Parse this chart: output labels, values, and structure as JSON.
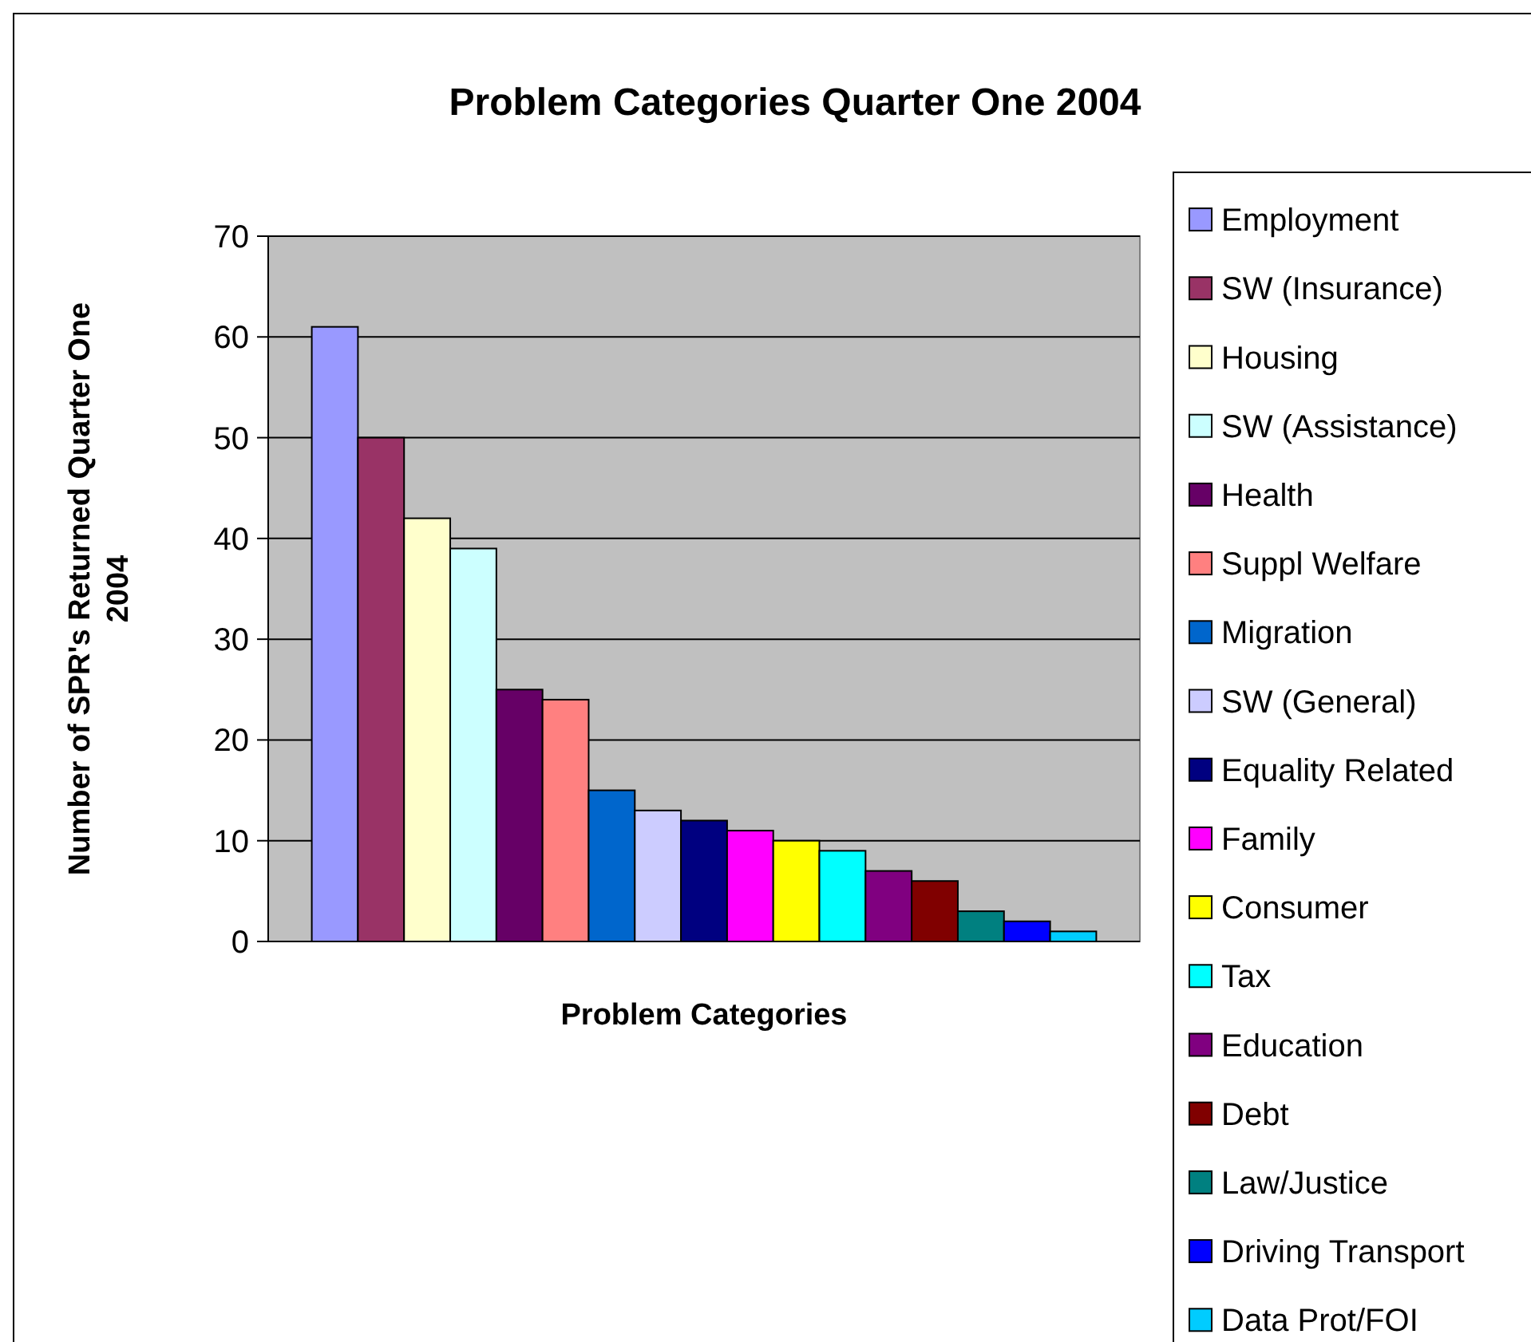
{
  "chart_data": {
    "type": "bar",
    "title": "Problem Categories Quarter One 2004",
    "xlabel": "Problem Categories",
    "ylabel": "Number of SPR's Returned Quarter One 2004",
    "categories": [
      null
    ],
    "series": [
      {
        "name": "Employment",
        "color": "#9999ff",
        "values": [
          61
        ]
      },
      {
        "name": "SW (Insurance)",
        "color": "#993366",
        "values": [
          50
        ]
      },
      {
        "name": "Housing",
        "color": "#ffffcc",
        "values": [
          42
        ]
      },
      {
        "name": "SW (Assistance)",
        "color": "#ccffff",
        "values": [
          39
        ]
      },
      {
        "name": "Health",
        "color": "#660066",
        "values": [
          25
        ]
      },
      {
        "name": "Suppl Welfare",
        "color": "#ff8080",
        "values": [
          24
        ]
      },
      {
        "name": "Migration",
        "color": "#0066cc",
        "values": [
          15
        ]
      },
      {
        "name": "SW (General)",
        "color": "#ccccff",
        "values": [
          13
        ]
      },
      {
        "name": "Equality Related",
        "color": "#000080",
        "values": [
          12
        ]
      },
      {
        "name": "Family",
        "color": "#ff00ff",
        "values": [
          11
        ]
      },
      {
        "name": "Consumer",
        "color": "#ffff00",
        "values": [
          10
        ]
      },
      {
        "name": "Tax",
        "color": "#00ffff",
        "values": [
          9
        ]
      },
      {
        "name": "Education",
        "color": "#800080",
        "values": [
          7
        ]
      },
      {
        "name": "Debt",
        "color": "#800000",
        "values": [
          6
        ]
      },
      {
        "name": "Law/Justice",
        "color": "#008080",
        "values": [
          3
        ]
      },
      {
        "name": "Driving Transport",
        "color": "#0000ff",
        "values": [
          2
        ]
      },
      {
        "name": "Data Prot/FOI",
        "color": "#00ccff",
        "values": [
          1
        ]
      }
    ],
    "ylim": [
      0,
      70
    ],
    "yticks": [
      0,
      10,
      20,
      30,
      40,
      50,
      60,
      70
    ],
    "grid": "y",
    "legend": "right"
  }
}
